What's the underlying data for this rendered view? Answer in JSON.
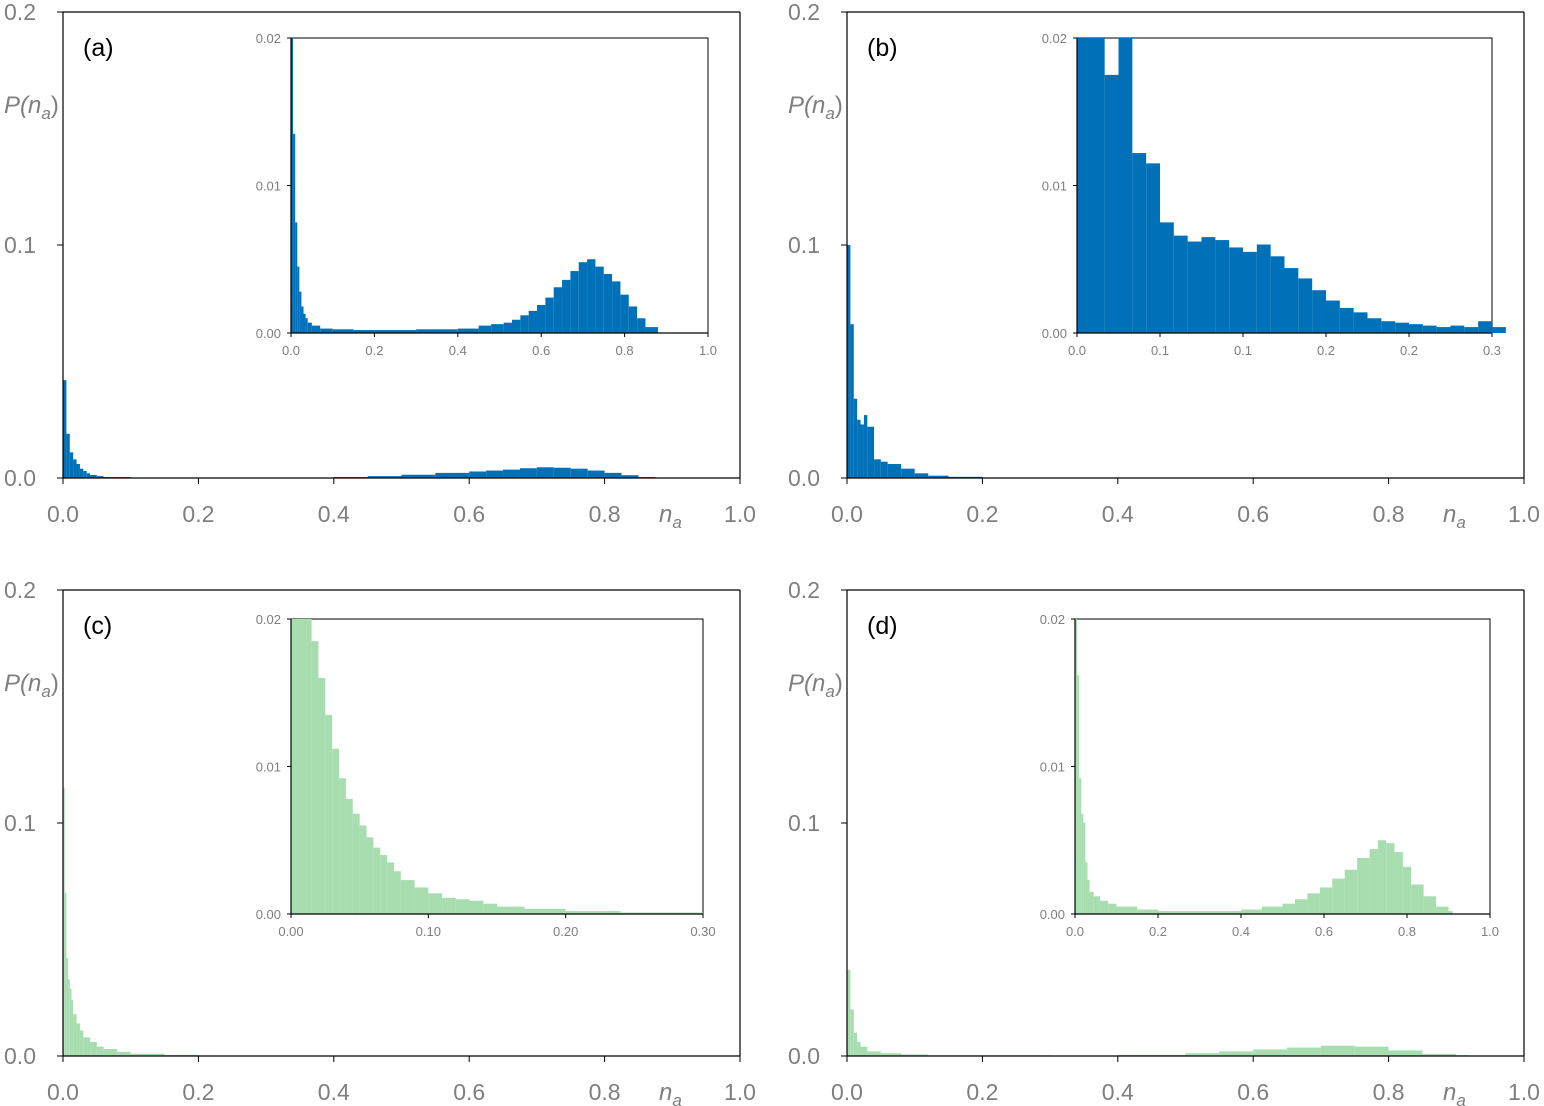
{
  "colors": {
    "blue": "#0070B8",
    "green": "#A8DDB0",
    "axis": "#000000",
    "tick_text": "#7f7f7f"
  },
  "chart_data": [
    {
      "panel": "(a)",
      "type": "histogram",
      "color": "#0070B8",
      "xlabel_main": "n",
      "xlabel_sub": "a",
      "ylabel_main": "P(n",
      "ylabel_sub": "a",
      "ylabel_close": ")",
      "xlim": [
        0,
        1.0
      ],
      "ylim": [
        0,
        0.2
      ],
      "xticks": [
        "0.0",
        "0.2",
        "0.4",
        "0.6",
        "0.8",
        "1.0"
      ],
      "yticks": [
        "0.0",
        "0.1",
        "0.2"
      ],
      "bins": [
        [
          0,
          0.005,
          0.042
        ],
        [
          0.005,
          0.01,
          0.019
        ],
        [
          0.01,
          0.015,
          0.011
        ],
        [
          0.015,
          0.02,
          0.008
        ],
        [
          0.02,
          0.025,
          0.006
        ],
        [
          0.025,
          0.03,
          0.004
        ],
        [
          0.03,
          0.035,
          0.003
        ],
        [
          0.035,
          0.04,
          0.002
        ],
        [
          0.04,
          0.05,
          0.0013
        ],
        [
          0.05,
          0.06,
          0.0008
        ],
        [
          0.06,
          0.1,
          0.0004
        ],
        [
          0.1,
          0.2,
          0.0002
        ],
        [
          0.2,
          0.4,
          0.0001
        ],
        [
          0.4,
          0.45,
          0.0004
        ],
        [
          0.45,
          0.5,
          0.0008
        ],
        [
          0.5,
          0.55,
          0.0014
        ],
        [
          0.55,
          0.6,
          0.0022
        ],
        [
          0.6,
          0.625,
          0.0028
        ],
        [
          0.625,
          0.65,
          0.0032
        ],
        [
          0.65,
          0.675,
          0.0036
        ],
        [
          0.675,
          0.7,
          0.0042
        ],
        [
          0.7,
          0.725,
          0.0046
        ],
        [
          0.725,
          0.75,
          0.0044
        ],
        [
          0.75,
          0.775,
          0.004
        ],
        [
          0.775,
          0.8,
          0.0032
        ],
        [
          0.8,
          0.825,
          0.0022
        ],
        [
          0.825,
          0.85,
          0.0012
        ],
        [
          0.85,
          0.875,
          0.0004
        ]
      ],
      "inset": {
        "xlim": [
          0,
          1.0
        ],
        "ylim": [
          0,
          0.02
        ],
        "xticks": [
          "0.0",
          "0.2",
          "0.4",
          "0.6",
          "0.8",
          "1.0"
        ],
        "yticks": [
          "0.00",
          "0.01",
          "0.02"
        ],
        "bins": [
          [
            0,
            0.005,
            0.02
          ],
          [
            0.005,
            0.01,
            0.0135
          ],
          [
            0.01,
            0.015,
            0.0075
          ],
          [
            0.015,
            0.02,
            0.0045
          ],
          [
            0.02,
            0.025,
            0.0028
          ],
          [
            0.025,
            0.03,
            0.0018
          ],
          [
            0.03,
            0.035,
            0.0013
          ],
          [
            0.035,
            0.04,
            0.001
          ],
          [
            0.04,
            0.05,
            0.0007
          ],
          [
            0.05,
            0.07,
            0.0005
          ],
          [
            0.07,
            0.1,
            0.0003
          ],
          [
            0.1,
            0.15,
            0.00025
          ],
          [
            0.15,
            0.2,
            0.0002
          ],
          [
            0.2,
            0.3,
            0.0002
          ],
          [
            0.3,
            0.4,
            0.00025
          ],
          [
            0.4,
            0.45,
            0.0003
          ],
          [
            0.45,
            0.48,
            0.0005
          ],
          [
            0.48,
            0.51,
            0.0006
          ],
          [
            0.51,
            0.53,
            0.0007
          ],
          [
            0.53,
            0.55,
            0.0009
          ],
          [
            0.55,
            0.57,
            0.0012
          ],
          [
            0.57,
            0.59,
            0.0015
          ],
          [
            0.59,
            0.61,
            0.0019
          ],
          [
            0.61,
            0.63,
            0.0024
          ],
          [
            0.63,
            0.65,
            0.0031
          ],
          [
            0.65,
            0.67,
            0.0036
          ],
          [
            0.67,
            0.69,
            0.0042
          ],
          [
            0.69,
            0.71,
            0.0048
          ],
          [
            0.71,
            0.73,
            0.005
          ],
          [
            0.73,
            0.75,
            0.0045
          ],
          [
            0.75,
            0.77,
            0.004
          ],
          [
            0.77,
            0.79,
            0.0035
          ],
          [
            0.79,
            0.81,
            0.0026
          ],
          [
            0.81,
            0.83,
            0.0018
          ],
          [
            0.83,
            0.85,
            0.001
          ],
          [
            0.85,
            0.88,
            0.0004
          ]
        ]
      }
    },
    {
      "panel": "(b)",
      "type": "histogram",
      "color": "#0070B8",
      "xlabel_main": "n",
      "xlabel_sub": "a",
      "ylabel_main": "P(n",
      "ylabel_sub": "a",
      "ylabel_close": ")",
      "xlim": [
        0,
        1.0
      ],
      "ylim": [
        0,
        0.2
      ],
      "xticks": [
        "0.0",
        "0.2",
        "0.4",
        "0.6",
        "0.8",
        "1.0"
      ],
      "yticks": [
        "0.0",
        "0.1",
        "0.2"
      ],
      "bins": [
        [
          0,
          0.005,
          0.1
        ],
        [
          0.005,
          0.01,
          0.066
        ],
        [
          0.01,
          0.015,
          0.034
        ],
        [
          0.015,
          0.02,
          0.025
        ],
        [
          0.02,
          0.025,
          0.023
        ],
        [
          0.025,
          0.03,
          0.027
        ],
        [
          0.03,
          0.04,
          0.022
        ],
        [
          0.04,
          0.05,
          0.008
        ],
        [
          0.05,
          0.06,
          0.007
        ],
        [
          0.06,
          0.08,
          0.006
        ],
        [
          0.08,
          0.1,
          0.004
        ],
        [
          0.1,
          0.12,
          0.002
        ],
        [
          0.12,
          0.15,
          0.001
        ],
        [
          0.15,
          0.2,
          0.0005
        ],
        [
          0.2,
          0.3,
          0.0002
        ]
      ],
      "inset": {
        "xlim": [
          0,
          0.3
        ],
        "ylim": [
          0,
          0.02
        ],
        "xticks": [
          "0.0",
          "0.1",
          "0.1",
          "0.2",
          "0.2",
          "0.3"
        ],
        "yticks": [
          "0.00",
          "0.01",
          "0.02"
        ],
        "bins": [
          [
            0,
            0.02,
            0.02
          ],
          [
            0.02,
            0.03,
            0.0175
          ],
          [
            0.03,
            0.04,
            0.02
          ],
          [
            0.04,
            0.05,
            0.0122
          ],
          [
            0.05,
            0.06,
            0.0115
          ],
          [
            0.06,
            0.07,
            0.0075
          ],
          [
            0.07,
            0.08,
            0.0066
          ],
          [
            0.08,
            0.09,
            0.0062
          ],
          [
            0.09,
            0.1,
            0.0065
          ],
          [
            0.1,
            0.11,
            0.0063
          ],
          [
            0.11,
            0.12,
            0.0058
          ],
          [
            0.12,
            0.13,
            0.0055
          ],
          [
            0.13,
            0.14,
            0.006
          ],
          [
            0.14,
            0.15,
            0.0052
          ],
          [
            0.15,
            0.16,
            0.0044
          ],
          [
            0.16,
            0.17,
            0.0037
          ],
          [
            0.17,
            0.18,
            0.0029
          ],
          [
            0.18,
            0.19,
            0.0022
          ],
          [
            0.19,
            0.2,
            0.0017
          ],
          [
            0.2,
            0.21,
            0.0014
          ],
          [
            0.21,
            0.22,
            0.001
          ],
          [
            0.22,
            0.23,
            0.0008
          ],
          [
            0.23,
            0.24,
            0.0007
          ],
          [
            0.24,
            0.25,
            0.0006
          ],
          [
            0.25,
            0.26,
            0.0005
          ],
          [
            0.26,
            0.27,
            0.0004
          ],
          [
            0.27,
            0.28,
            0.0005
          ],
          [
            0.28,
            0.29,
            0.0004
          ],
          [
            0.29,
            0.3,
            0.0008
          ],
          [
            0.3,
            0.31,
            0.0004
          ]
        ]
      }
    },
    {
      "panel": "(c)",
      "type": "histogram",
      "color": "#A8DDB0",
      "xlabel_main": "n",
      "xlabel_sub": "a",
      "ylabel_main": "P(n",
      "ylabel_sub": "a",
      "ylabel_close": ")",
      "xlim": [
        0,
        1.0
      ],
      "ylim": [
        0,
        0.2
      ],
      "xticks": [
        "0.0",
        "0.2",
        "0.4",
        "0.6",
        "0.8",
        "1.0"
      ],
      "yticks": [
        "0.0",
        "0.1",
        "0.2"
      ],
      "bins": [
        [
          0,
          0.0025,
          0.115
        ],
        [
          0.0025,
          0.005,
          0.07
        ],
        [
          0.005,
          0.0075,
          0.042
        ],
        [
          0.0075,
          0.01,
          0.033
        ],
        [
          0.01,
          0.0125,
          0.029
        ],
        [
          0.0125,
          0.015,
          0.024
        ],
        [
          0.015,
          0.02,
          0.018
        ],
        [
          0.02,
          0.025,
          0.014
        ],
        [
          0.025,
          0.03,
          0.011
        ],
        [
          0.03,
          0.04,
          0.008
        ],
        [
          0.04,
          0.05,
          0.006
        ],
        [
          0.05,
          0.06,
          0.004
        ],
        [
          0.06,
          0.08,
          0.003
        ],
        [
          0.08,
          0.1,
          0.0018
        ],
        [
          0.1,
          0.15,
          0.001
        ],
        [
          0.15,
          0.2,
          0.0005
        ],
        [
          0.2,
          0.3,
          0.0002
        ]
      ],
      "inset": {
        "xlim": [
          0,
          0.3
        ],
        "ylim": [
          0,
          0.02
        ],
        "xticks": [
          "0.00",
          "0.10",
          "0.20",
          "0.30"
        ],
        "yticks": [
          "0.00",
          "0.01",
          "0.02"
        ],
        "bins": [
          [
            0,
            0.015,
            0.02
          ],
          [
            0.015,
            0.02,
            0.0185
          ],
          [
            0.02,
            0.025,
            0.016
          ],
          [
            0.025,
            0.03,
            0.0135
          ],
          [
            0.03,
            0.035,
            0.0112
          ],
          [
            0.035,
            0.04,
            0.0092
          ],
          [
            0.04,
            0.045,
            0.0078
          ],
          [
            0.045,
            0.05,
            0.0068
          ],
          [
            0.05,
            0.055,
            0.006
          ],
          [
            0.055,
            0.06,
            0.0052
          ],
          [
            0.06,
            0.065,
            0.0045
          ],
          [
            0.065,
            0.07,
            0.004
          ],
          [
            0.07,
            0.075,
            0.0035
          ],
          [
            0.075,
            0.08,
            0.0029
          ],
          [
            0.08,
            0.09,
            0.0023
          ],
          [
            0.09,
            0.1,
            0.0018
          ],
          [
            0.1,
            0.11,
            0.0014
          ],
          [
            0.11,
            0.12,
            0.0011
          ],
          [
            0.12,
            0.13,
            0.001
          ],
          [
            0.13,
            0.14,
            0.0009
          ],
          [
            0.14,
            0.15,
            0.0007
          ],
          [
            0.15,
            0.17,
            0.0005
          ],
          [
            0.17,
            0.2,
            0.00035
          ],
          [
            0.2,
            0.24,
            0.0002
          ],
          [
            0.24,
            0.3,
            0.0001
          ]
        ]
      }
    },
    {
      "panel": "(d)",
      "type": "histogram",
      "color": "#A8DDB0",
      "xlabel_main": "n",
      "xlabel_sub": "a",
      "ylabel_main": "P(n",
      "ylabel_sub": "a",
      "ylabel_close": ")",
      "xlim": [
        0,
        1.0
      ],
      "ylim": [
        0,
        0.2
      ],
      "xticks": [
        "0.0",
        "0.2",
        "0.4",
        "0.6",
        "0.8",
        "1.0"
      ],
      "yticks": [
        "0.0",
        "0.1",
        "0.2"
      ],
      "bins": [
        [
          0,
          0.005,
          0.037
        ],
        [
          0.005,
          0.01,
          0.02
        ],
        [
          0.01,
          0.015,
          0.01
        ],
        [
          0.015,
          0.02,
          0.006
        ],
        [
          0.02,
          0.03,
          0.004
        ],
        [
          0.03,
          0.05,
          0.002
        ],
        [
          0.05,
          0.08,
          0.0012
        ],
        [
          0.08,
          0.12,
          0.0007
        ],
        [
          0.12,
          0.3,
          0.0003
        ],
        [
          0.3,
          0.4,
          0.0002
        ],
        [
          0.4,
          0.5,
          0.0005
        ],
        [
          0.5,
          0.55,
          0.0012
        ],
        [
          0.55,
          0.6,
          0.002
        ],
        [
          0.6,
          0.65,
          0.0028
        ],
        [
          0.65,
          0.7,
          0.0036
        ],
        [
          0.7,
          0.75,
          0.0044
        ],
        [
          0.75,
          0.8,
          0.004
        ],
        [
          0.8,
          0.85,
          0.0024
        ],
        [
          0.85,
          0.9,
          0.0009
        ],
        [
          0.9,
          0.92,
          0.0003
        ]
      ],
      "inset": {
        "xlim": [
          0,
          1.0
        ],
        "ylim": [
          0,
          0.02
        ],
        "xticks": [
          "0.0",
          "0.2",
          "0.4",
          "0.6",
          "0.8",
          "1.0"
        ],
        "yticks": [
          "0.00",
          "0.01",
          "0.02"
        ],
        "bins": [
          [
            0,
            0.005,
            0.02
          ],
          [
            0.005,
            0.01,
            0.0162
          ],
          [
            0.01,
            0.015,
            0.0092
          ],
          [
            0.015,
            0.02,
            0.0068
          ],
          [
            0.02,
            0.025,
            0.0062
          ],
          [
            0.025,
            0.03,
            0.0035
          ],
          [
            0.03,
            0.035,
            0.0023
          ],
          [
            0.035,
            0.045,
            0.0015
          ],
          [
            0.045,
            0.06,
            0.0012
          ],
          [
            0.06,
            0.08,
            0.0009
          ],
          [
            0.08,
            0.1,
            0.0007
          ],
          [
            0.1,
            0.15,
            0.0005
          ],
          [
            0.15,
            0.2,
            0.0003
          ],
          [
            0.2,
            0.3,
            0.0002
          ],
          [
            0.3,
            0.4,
            0.0002
          ],
          [
            0.4,
            0.45,
            0.0003
          ],
          [
            0.45,
            0.5,
            0.0005
          ],
          [
            0.5,
            0.53,
            0.0007
          ],
          [
            0.53,
            0.56,
            0.001
          ],
          [
            0.56,
            0.59,
            0.0014
          ],
          [
            0.59,
            0.62,
            0.0018
          ],
          [
            0.62,
            0.65,
            0.0024
          ],
          [
            0.65,
            0.68,
            0.003
          ],
          [
            0.68,
            0.71,
            0.0038
          ],
          [
            0.71,
            0.73,
            0.0044
          ],
          [
            0.73,
            0.75,
            0.005
          ],
          [
            0.75,
            0.77,
            0.0048
          ],
          [
            0.77,
            0.79,
            0.0042
          ],
          [
            0.79,
            0.81,
            0.0032
          ],
          [
            0.81,
            0.84,
            0.002
          ],
          [
            0.84,
            0.87,
            0.0012
          ],
          [
            0.87,
            0.9,
            0.0005
          ],
          [
            0.9,
            0.91,
            0.0002
          ]
        ]
      }
    }
  ]
}
